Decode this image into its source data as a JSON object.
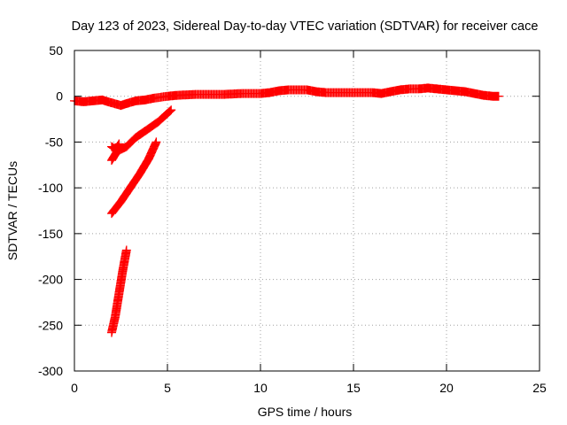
{
  "chart_data": {
    "type": "scatter",
    "title": "Day 123 of 2023, Sidereal Day-to-day VTEC variation (SDTVAR) for receiver cace",
    "xlabel": "GPS time / hours",
    "ylabel": "SDTVAR / TECUs",
    "xlim": [
      0,
      25
    ],
    "ylim": [
      -300,
      50
    ],
    "xticks": [
      0,
      5,
      10,
      15,
      20,
      25
    ],
    "yticks": [
      -300,
      -250,
      -200,
      -150,
      -100,
      -50,
      0,
      50
    ],
    "grid": true,
    "marker": "plus",
    "color": "#ff0000",
    "series": [
      {
        "name": "main",
        "points": [
          [
            0,
            -5
          ],
          [
            0.5,
            -6
          ],
          [
            1,
            -5
          ],
          [
            1.5,
            -4
          ],
          [
            1.8,
            -6
          ],
          [
            2.5,
            -10
          ],
          [
            2.8,
            -8
          ],
          [
            3.3,
            -5
          ],
          [
            3.8,
            -4
          ],
          [
            4.3,
            -2
          ],
          [
            5,
            0
          ],
          [
            5.5,
            1
          ],
          [
            6.5,
            2
          ],
          [
            8,
            2
          ],
          [
            9,
            3
          ],
          [
            10,
            3
          ],
          [
            10.5,
            4
          ],
          [
            11,
            6
          ],
          [
            11.5,
            7
          ],
          [
            12,
            7
          ],
          [
            12.5,
            7
          ],
          [
            13,
            5
          ],
          [
            13.5,
            4
          ],
          [
            14,
            4
          ],
          [
            15,
            4
          ],
          [
            16,
            4
          ],
          [
            16.5,
            3
          ],
          [
            17,
            5
          ],
          [
            17.5,
            7
          ],
          [
            18,
            8
          ],
          [
            18.5,
            8
          ],
          [
            19,
            9
          ],
          [
            19.5,
            8
          ],
          [
            20,
            7
          ],
          [
            20.5,
            6
          ],
          [
            21,
            5
          ],
          [
            21.5,
            3
          ],
          [
            22,
            1
          ],
          [
            22.5,
            0
          ],
          [
            22.8,
            0
          ]
        ]
      },
      {
        "name": "arc-1",
        "points": [
          [
            2,
            -70
          ],
          [
            2.3,
            -60
          ],
          [
            2.8,
            -55
          ],
          [
            3.3,
            -45
          ],
          [
            3.8,
            -38
          ],
          [
            4.5,
            -28
          ],
          [
            5.2,
            -15
          ]
        ]
      },
      {
        "name": "arc-2",
        "points": [
          [
            2,
            -55
          ],
          [
            2.2,
            -58
          ],
          [
            2.4,
            -52
          ]
        ]
      },
      {
        "name": "arc-3",
        "points": [
          [
            2,
            -128
          ],
          [
            2.5,
            -115
          ],
          [
            3,
            -100
          ],
          [
            3.5,
            -85
          ],
          [
            4,
            -68
          ],
          [
            4.4,
            -50
          ]
        ]
      },
      {
        "name": "arc-4",
        "points": [
          [
            2,
            -258
          ],
          [
            2.2,
            -240
          ],
          [
            2.4,
            -215
          ],
          [
            2.6,
            -190
          ],
          [
            2.8,
            -168
          ]
        ]
      }
    ]
  }
}
